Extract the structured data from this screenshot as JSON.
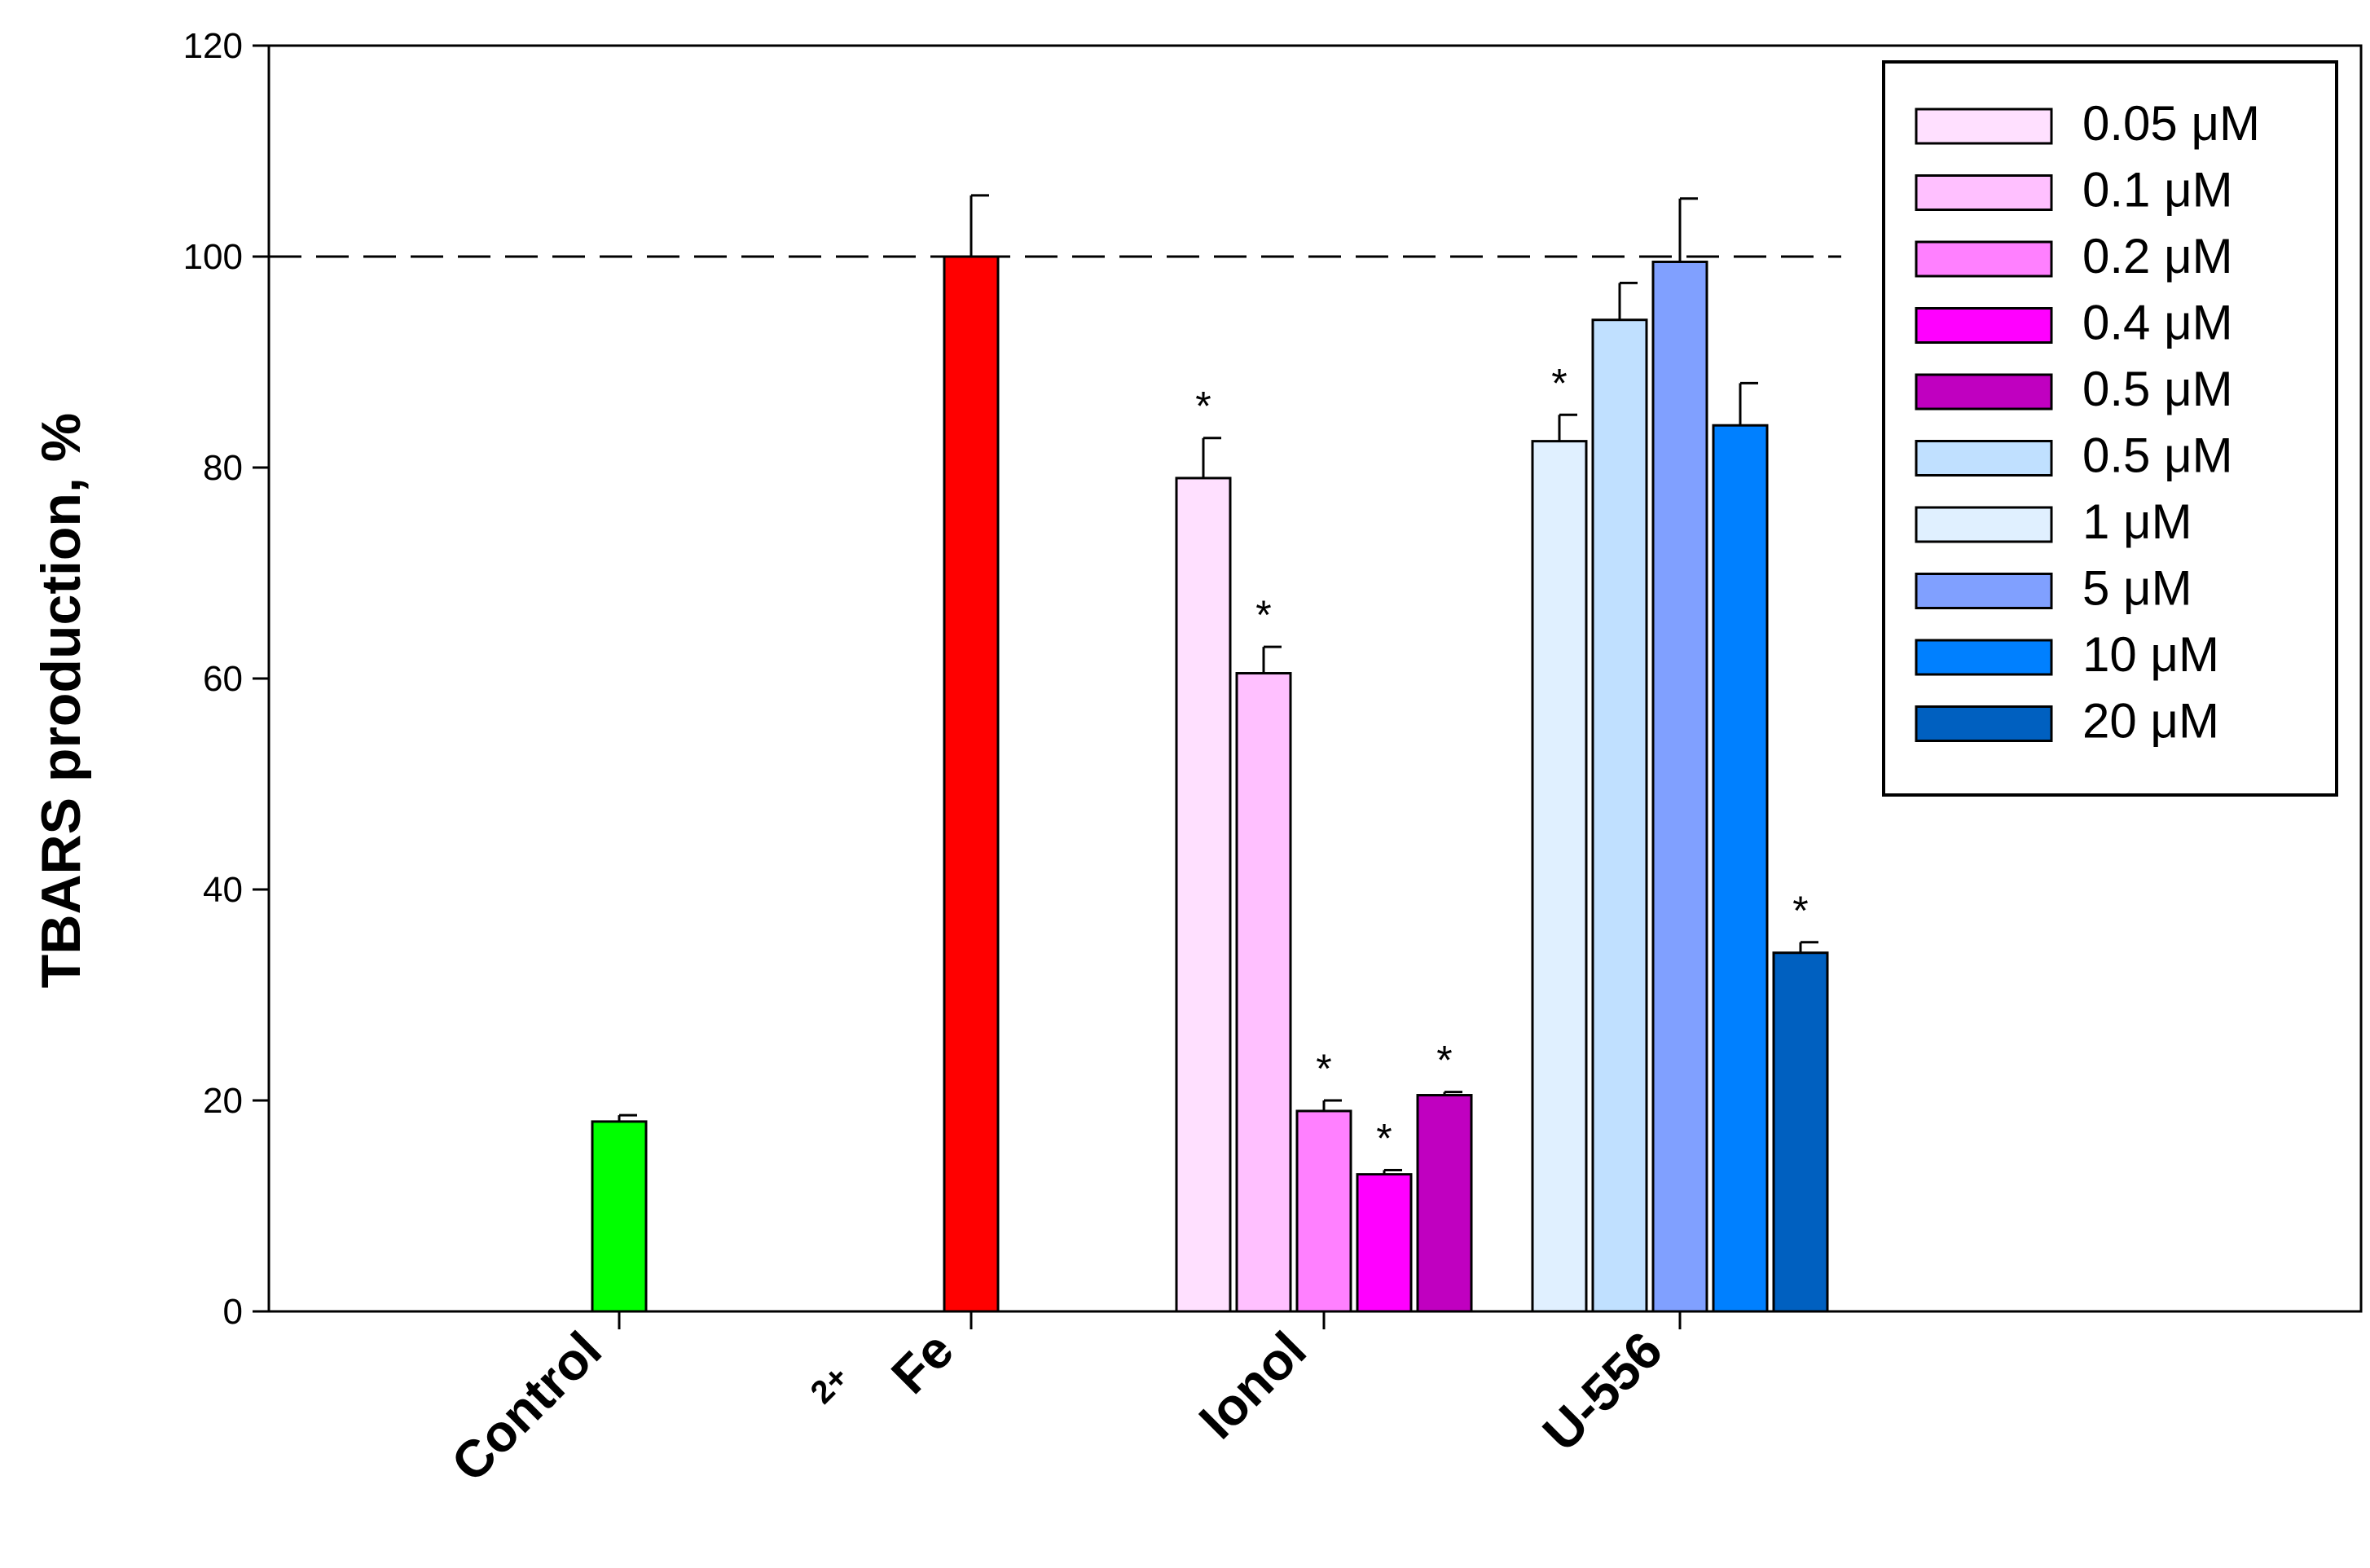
{
  "chart_data": {
    "type": "bar",
    "ylabel": "TBARS production, %",
    "ylim": [
      0,
      120
    ],
    "yticks": [
      0,
      20,
      40,
      60,
      80,
      100,
      120
    ],
    "reference_line": 100,
    "legend_placement": "top-right",
    "groups": [
      {
        "label": "Control",
        "bars": [
          {
            "value": 18,
            "error": 0.6,
            "color": "#00ff00",
            "star": false
          }
        ]
      },
      {
        "label": "Fe",
        "label_sup": "2+",
        "bars": [
          {
            "value": 100,
            "error": 5.8,
            "color": "#ff0000",
            "star": false
          }
        ]
      },
      {
        "label": "Ionol",
        "bars": [
          {
            "value": 79,
            "error": 3.8,
            "series": "0.05 μM",
            "color": "#ffe0ff",
            "star": true
          },
          {
            "value": 60.5,
            "error": 2.5,
            "series": "0.1 μM",
            "color": "#ffc0ff",
            "star": true
          },
          {
            "value": 19,
            "error": 1.0,
            "series": "0.2 μM",
            "color": "#ff80ff",
            "star": true
          },
          {
            "value": 13,
            "error": 0.4,
            "series": "0.4 μM",
            "color": "#ff00ff",
            "star": true
          },
          {
            "value": 20.5,
            "error": 0.3,
            "series": "0.5 μM",
            "color": "#c000c0",
            "star": true
          }
        ]
      },
      {
        "label": "U-556",
        "bars": [
          {
            "value": 82.5,
            "error": 2.5,
            "series": "1 μM",
            "color": "#e0f0ff",
            "star": true
          },
          {
            "value": 94,
            "error": 3.5,
            "series": "0.5 μM",
            "color": "#c0e0ff",
            "star": false
          },
          {
            "value": 99.5,
            "error": 6.0,
            "series": "5 μM",
            "color": "#80a0ff",
            "star": false
          },
          {
            "value": 84,
            "error": 4.0,
            "series": "10 μM",
            "color": "#0080ff",
            "star": false
          },
          {
            "value": 34,
            "error": 1.0,
            "series": "20 μM",
            "color": "#0060c0",
            "star": true
          }
        ]
      }
    ],
    "legend": [
      {
        "label": "0.05 μM",
        "color": "#ffe0ff"
      },
      {
        "label": "0.1 μM",
        "color": "#ffc0ff"
      },
      {
        "label": "0.2 μM",
        "color": "#ff80ff"
      },
      {
        "label": "0.4 μM",
        "color": "#ff00ff"
      },
      {
        "label": "0.5 μM",
        "color": "#c000c0"
      },
      {
        "label": "0.5 μM",
        "color": "#c0e0ff"
      },
      {
        "label": "1 μM",
        "color": "#e0f0ff"
      },
      {
        "label": "5 μM",
        "color": "#80a0ff"
      },
      {
        "label": "10 μM",
        "color": "#0080ff"
      },
      {
        "label": "20 μM",
        "color": "#0060c0"
      }
    ],
    "star_symbol": "*"
  }
}
